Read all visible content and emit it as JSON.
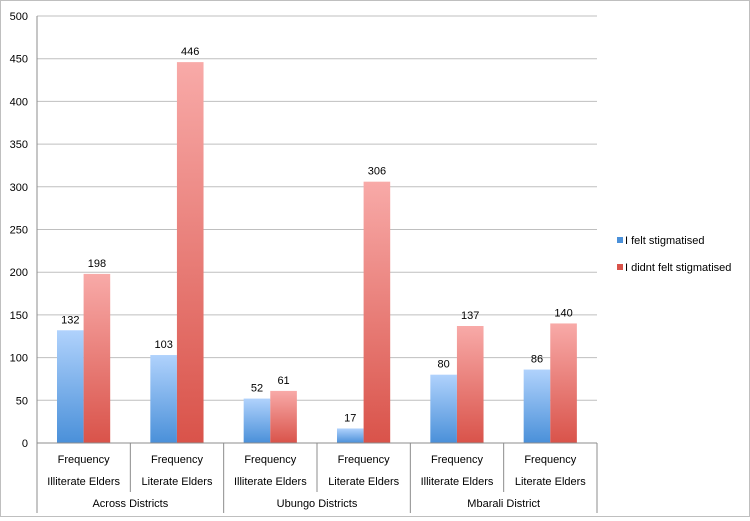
{
  "chart_data": {
    "type": "bar",
    "title": "",
    "xlabel": "",
    "ylabel": "",
    "ylim": [
      0,
      500
    ],
    "yticks": [
      0,
      50,
      100,
      150,
      200,
      250,
      300,
      350,
      400,
      450,
      500
    ],
    "grid": true,
    "legend_position": "right",
    "categories": [
      {
        "line1": "Frequency",
        "line2": "Illiterate Elders",
        "group": "Across Districts"
      },
      {
        "line1": "Frequency",
        "line2": "Literate Elders",
        "group": "Across Districts"
      },
      {
        "line1": "Frequency",
        "line2": "Illiterate Elders",
        "group": "Ubungo Districts"
      },
      {
        "line1": "Frequency",
        "line2": "Literate Elders",
        "group": "Ubungo Districts"
      },
      {
        "line1": "Frequency",
        "line2": "Illiterate Elders",
        "group": "Mbarali District"
      },
      {
        "line1": "Frequency",
        "line2": "Literate Elders",
        "group": "Mbarali District"
      }
    ],
    "groups": [
      "Across Districts",
      "Ubungo Districts",
      "Mbarali District"
    ],
    "series": [
      {
        "name": "I felt stigmatised",
        "color": "#4a90d9",
        "values": [
          132,
          103,
          52,
          17,
          80,
          86
        ]
      },
      {
        "name": "I didnt  felt stigmatised",
        "color": "#d9534a",
        "values": [
          198,
          446,
          61,
          306,
          137,
          140
        ]
      }
    ]
  }
}
